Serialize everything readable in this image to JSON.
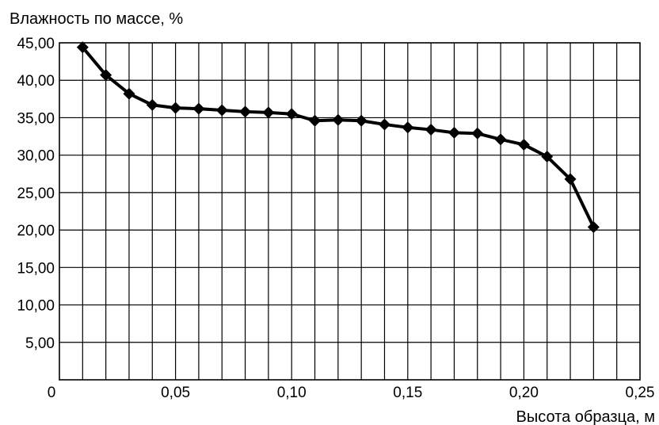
{
  "chart_data": {
    "type": "line",
    "title": "",
    "ylabel": "Влажность по массе, %",
    "xlabel": "Высота образца, м",
    "xlim": [
      0,
      0.25
    ],
    "ylim": [
      0,
      45
    ],
    "x_tick_values": [
      0,
      0.05,
      0.1,
      0.15,
      0.2,
      0.25
    ],
    "x_tick_labels": [
      "0",
      "0,05",
      "0,10",
      "0,15",
      "0,20",
      "0,25"
    ],
    "y_tick_values": [
      5,
      10,
      15,
      20,
      25,
      30,
      35,
      40,
      45
    ],
    "y_tick_labels": [
      "5,00",
      "10,00",
      "15,00",
      "20,00",
      "25,00",
      "30,00",
      "35,00",
      "40,00",
      "45,00"
    ],
    "grid": true,
    "x_grid_step": 0.01,
    "y_grid_step": 5,
    "legend": "none",
    "series": [
      {
        "marker": "diamond",
        "color": "#000000",
        "x": [
          0.01,
          0.02,
          0.03,
          0.04,
          0.05,
          0.06,
          0.07,
          0.08,
          0.09,
          0.1,
          0.11,
          0.12,
          0.13,
          0.14,
          0.15,
          0.16,
          0.17,
          0.18,
          0.19,
          0.2,
          0.21,
          0.22,
          0.23
        ],
        "y": [
          44.4,
          40.7,
          38.2,
          36.7,
          36.3,
          36.2,
          36.0,
          35.8,
          35.7,
          35.5,
          34.6,
          34.7,
          34.6,
          34.1,
          33.7,
          33.4,
          33.0,
          32.9,
          32.1,
          31.4,
          29.8,
          26.8,
          20.4
        ]
      }
    ]
  }
}
